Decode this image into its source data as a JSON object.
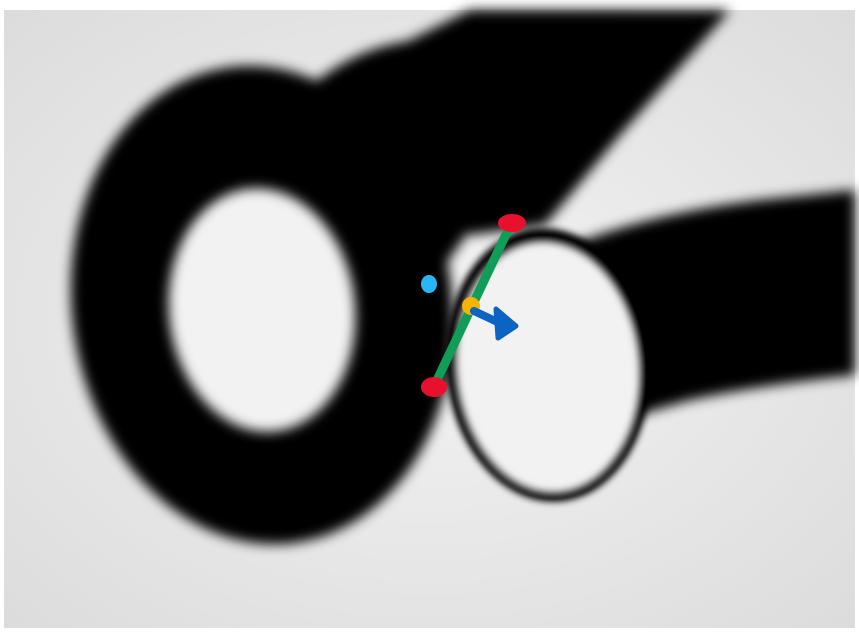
{
  "image": {
    "subject": "scissors-handles",
    "background_color": "#f0f0f0",
    "object_color": "#050505",
    "frame_color": "#ffffff"
  },
  "overlay": {
    "line_color": "#0f9d58",
    "endpoint_color": "#e8112d",
    "midpoint_color": "#f5b400",
    "arrow_color": "#0b63c4",
    "dot_color": "#29b6f6"
  }
}
